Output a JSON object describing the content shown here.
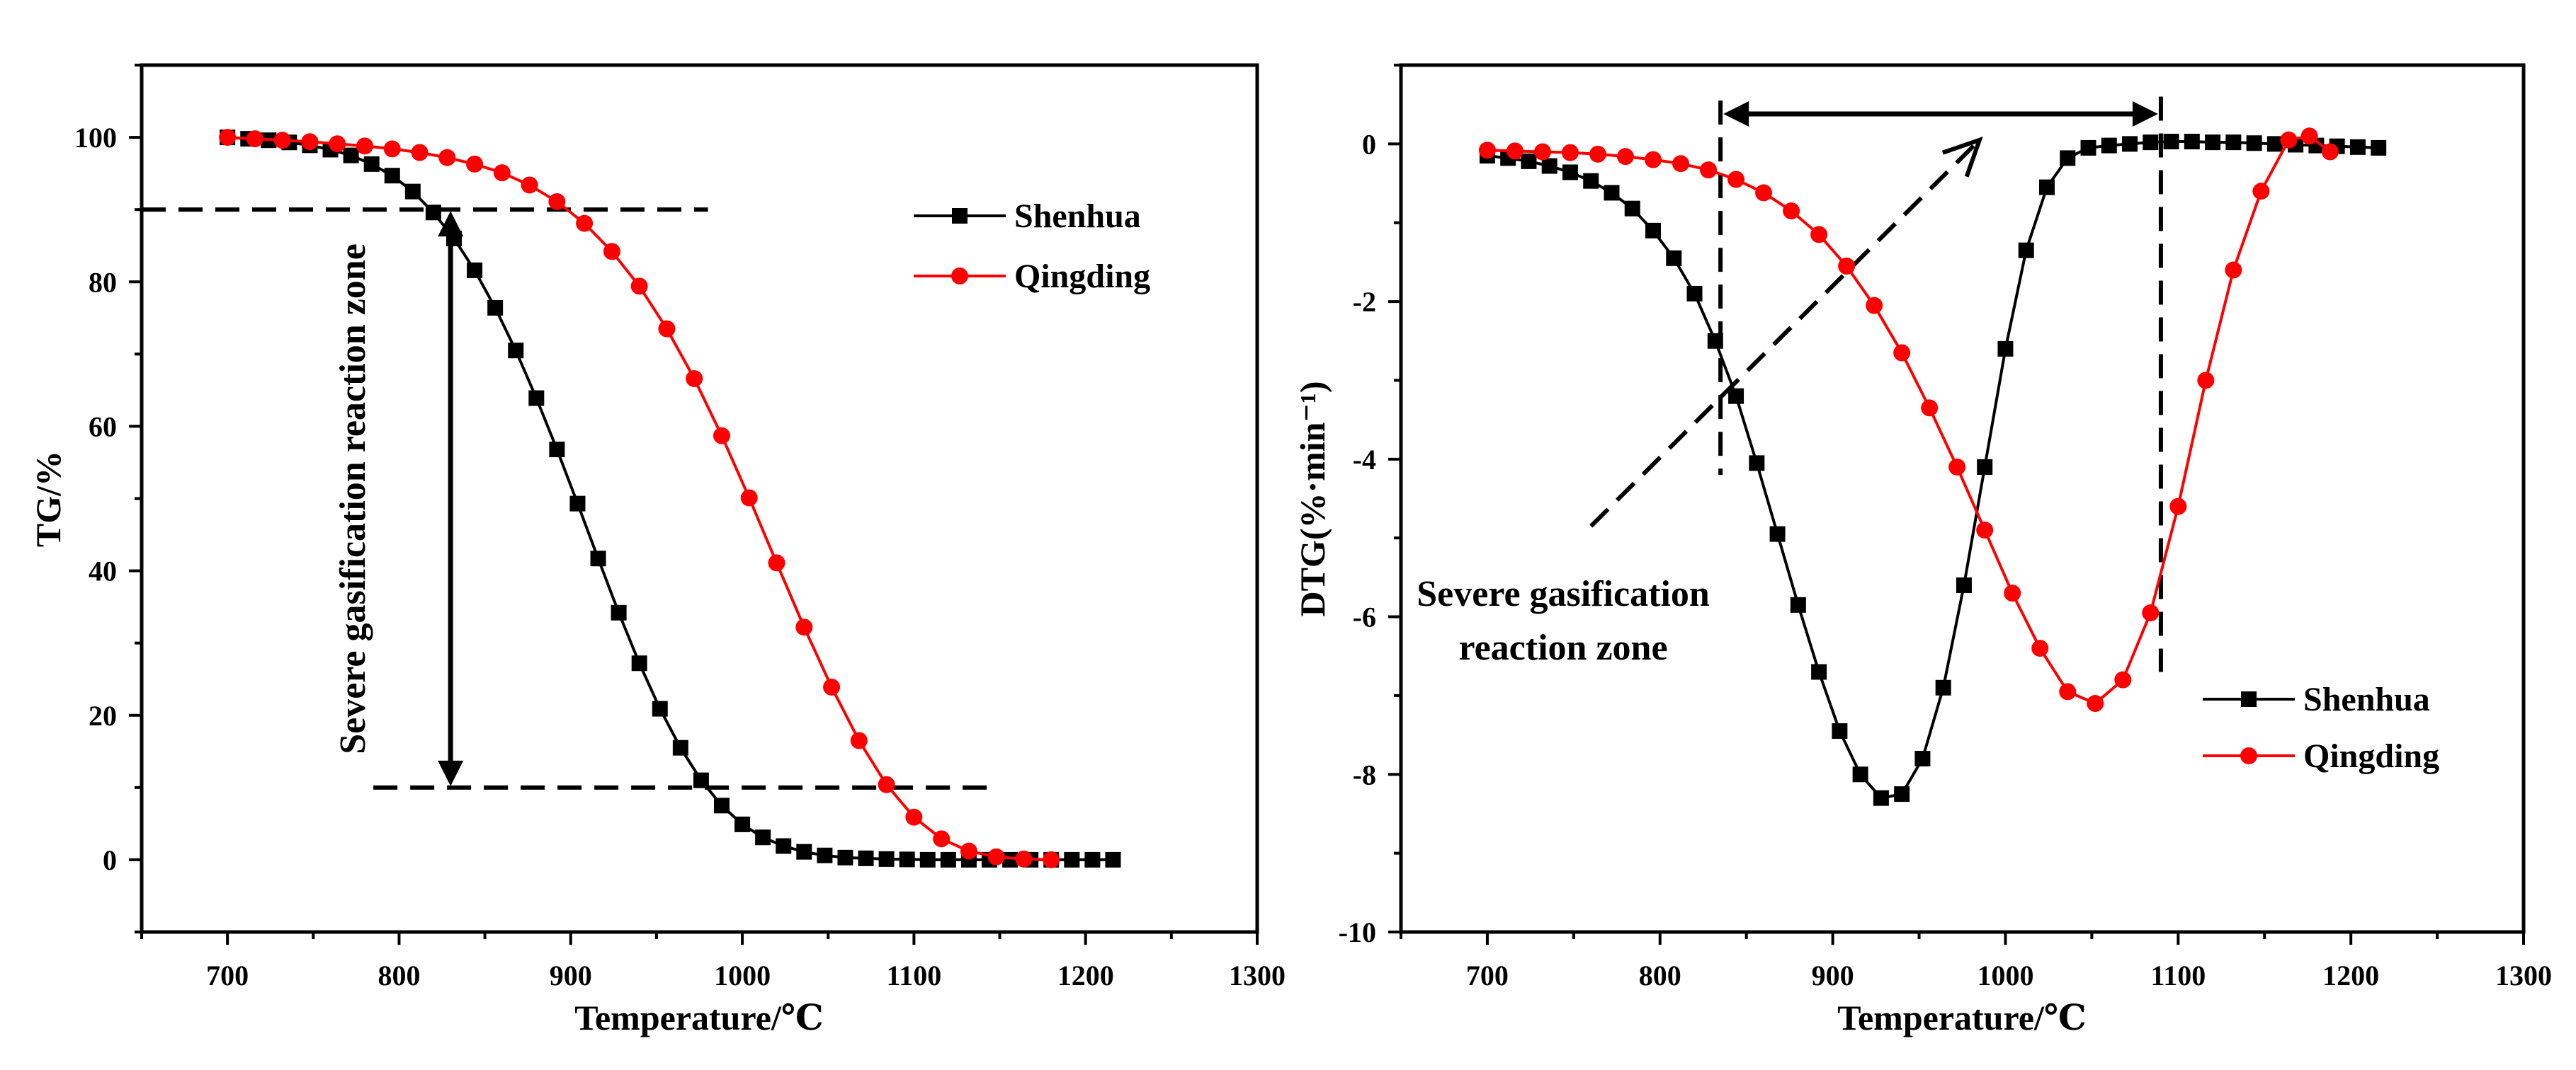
{
  "chart_data": [
    {
      "type": "scatter",
      "id": "tg",
      "title": "",
      "xlabel": "Temperature/℃",
      "ylabel": "TG/%",
      "xlim": [
        650,
        1300
      ],
      "ylim": [
        -10,
        110
      ],
      "x_ticks": [
        700,
        800,
        900,
        1000,
        1100,
        1200,
        1300
      ],
      "y_ticks": [
        0,
        20,
        40,
        60,
        80,
        100
      ],
      "legend_position": "upper-right",
      "annotation": "Severe gasification reaction zone",
      "reference_lines": [
        90,
        10
      ],
      "series": [
        {
          "name": "Shenhua",
          "color": "#000000",
          "marker": "square",
          "x": [
            700,
            712,
            724,
            736,
            748,
            760,
            772,
            784,
            796,
            808,
            820,
            832,
            844,
            856,
            868,
            880,
            892,
            904,
            916,
            928,
            940,
            952,
            964,
            976,
            988,
            1000,
            1012,
            1024,
            1036,
            1048,
            1060,
            1072,
            1084,
            1096,
            1108,
            1120,
            1132,
            1144,
            1156,
            1168,
            1180,
            1192,
            1204,
            1216
          ],
          "y": [
            100,
            99.8,
            99.6,
            99.3,
            98.9,
            98.3,
            97.5,
            96.3,
            94.7,
            92.5,
            89.6,
            86,
            81.6,
            76.4,
            70.5,
            63.9,
            56.8,
            49.3,
            41.7,
            34.2,
            27.2,
            20.9,
            15.5,
            11,
            7.5,
            4.9,
            3.1,
            1.9,
            1.1,
            0.6,
            0.3,
            0.2,
            0.1,
            0.05,
            0,
            0,
            0,
            0,
            0,
            0,
            0,
            0,
            0,
            0
          ]
        },
        {
          "name": "Qingding",
          "color": "#ff0000",
          "marker": "circle",
          "x": [
            700,
            716,
            732,
            748,
            764,
            780,
            796,
            812,
            828,
            844,
            860,
            876,
            892,
            908,
            924,
            940,
            956,
            972,
            988,
            1004,
            1020,
            1036,
            1052,
            1068,
            1084,
            1100,
            1116,
            1132,
            1148,
            1164,
            1180
          ],
          "y": [
            100,
            99.8,
            99.6,
            99.4,
            99.1,
            98.8,
            98.4,
            97.9,
            97.2,
            96.3,
            95.1,
            93.4,
            91.1,
            88.1,
            84.2,
            79.4,
            73.5,
            66.6,
            58.7,
            50.1,
            41.1,
            32.2,
            23.9,
            16.5,
            10.4,
            5.9,
            2.9,
            1.2,
            0.4,
            0.1,
            0
          ]
        }
      ]
    },
    {
      "type": "scatter",
      "id": "dtg",
      "title": "",
      "xlabel": "Temperature/℃",
      "ylabel": "DTG(%·min⁻¹)",
      "xlim": [
        650,
        1300
      ],
      "ylim": [
        -10,
        1
      ],
      "x_ticks": [
        700,
        800,
        900,
        1000,
        1100,
        1200,
        1300
      ],
      "y_ticks": [
        0,
        -2,
        -4,
        -6,
        -8,
        -10
      ],
      "legend_position": "lower-right",
      "annotation": [
        "Severe gasification",
        "reaction zone"
      ],
      "reference_lines": [
        835,
        1090
      ],
      "series": [
        {
          "name": "Shenhua",
          "color": "#000000",
          "marker": "square",
          "x": [
            700,
            712,
            724,
            736,
            748,
            760,
            772,
            784,
            796,
            808,
            820,
            832,
            844,
            856,
            868,
            880,
            892,
            904,
            916,
            928,
            940,
            952,
            964,
            976,
            988,
            1000,
            1012,
            1024,
            1036,
            1048,
            1060,
            1072,
            1084,
            1096,
            1108,
            1120,
            1132,
            1144,
            1156,
            1168,
            1180,
            1192,
            1204,
            1216
          ],
          "y": [
            -0.15,
            -0.18,
            -0.22,
            -0.28,
            -0.36,
            -0.47,
            -0.62,
            -0.82,
            -1.1,
            -1.45,
            -1.9,
            -2.5,
            -3.2,
            -4.05,
            -4.95,
            -5.85,
            -6.7,
            -7.45,
            -8.0,
            -8.3,
            -8.25,
            -7.8,
            -6.9,
            -5.6,
            -4.1,
            -2.6,
            -1.35,
            -0.55,
            -0.18,
            -0.05,
            -0.02,
            0.0,
            0.02,
            0.03,
            0.03,
            0.02,
            0.02,
            0.01,
            0.0,
            -0.01,
            -0.02,
            -0.03,
            -0.04,
            -0.05
          ]
        },
        {
          "name": "Qingding",
          "color": "#ff0000",
          "marker": "circle",
          "x": [
            700,
            716,
            732,
            748,
            764,
            780,
            796,
            812,
            828,
            844,
            860,
            876,
            892,
            908,
            924,
            940,
            956,
            972,
            988,
            1004,
            1020,
            1036,
            1052,
            1068,
            1084,
            1100,
            1116,
            1132,
            1148,
            1164,
            1176,
            1188
          ],
          "y": [
            -0.08,
            -0.09,
            -0.1,
            -0.11,
            -0.13,
            -0.16,
            -0.2,
            -0.25,
            -0.33,
            -0.45,
            -0.62,
            -0.85,
            -1.15,
            -1.55,
            -2.05,
            -2.65,
            -3.35,
            -4.1,
            -4.9,
            -5.7,
            -6.4,
            -6.95,
            -7.1,
            -6.8,
            -5.95,
            -4.6,
            -3.0,
            -1.6,
            -0.6,
            0.05,
            0.1,
            -0.1
          ]
        }
      ]
    }
  ]
}
